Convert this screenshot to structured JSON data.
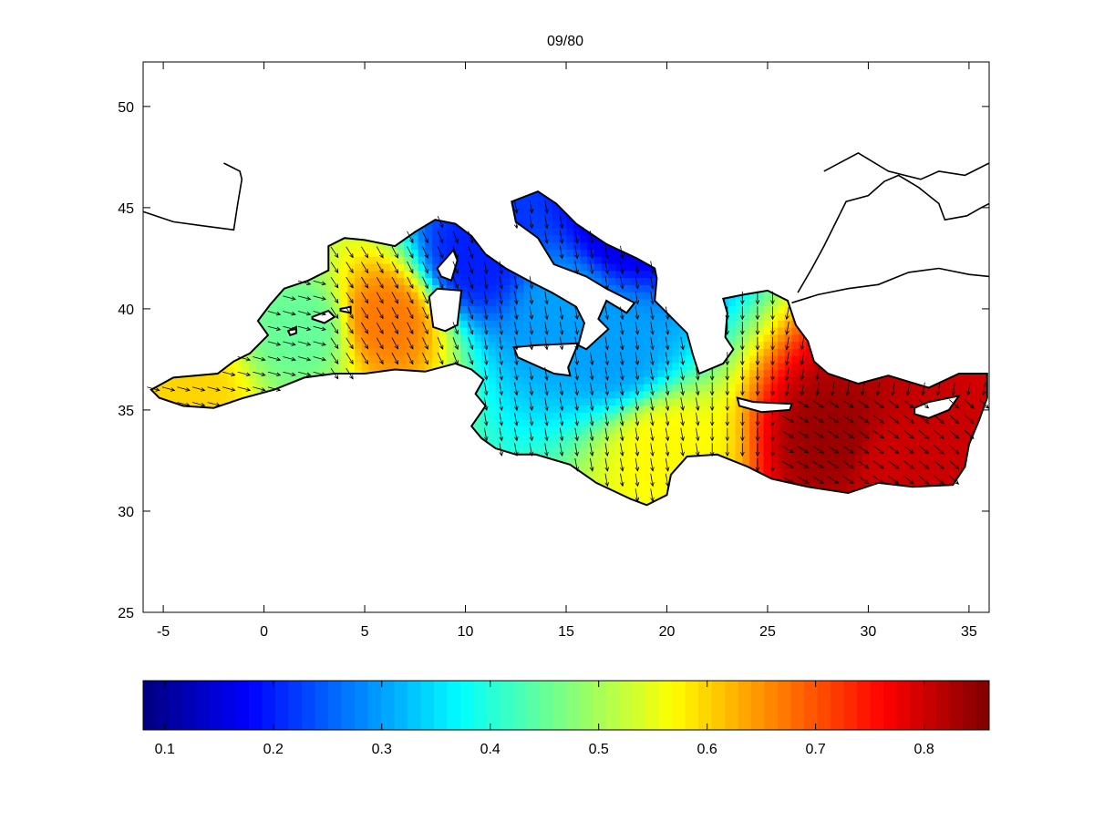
{
  "chart_data": {
    "type": "heatmap",
    "title": "09/80",
    "xlabel": "",
    "ylabel": "",
    "xlim": [
      -6,
      36
    ],
    "ylim": [
      25,
      52.2
    ],
    "x_ticks": [
      -5,
      0,
      5,
      10,
      15,
      20,
      25,
      30,
      35
    ],
    "y_ticks": [
      25,
      30,
      35,
      40,
      45,
      50
    ],
    "grid": false,
    "colormap": "jet",
    "colorbar": {
      "orientation": "horizontal",
      "placement": "bottom",
      "range": [
        0.08,
        0.86
      ],
      "ticks": [
        0.1,
        0.2,
        0.3,
        0.4,
        0.5,
        0.6,
        0.7,
        0.8
      ]
    },
    "field_peaks": [
      {
        "lon": 6.0,
        "lat": 39.5,
        "value": 0.67
      },
      {
        "lon": 28.5,
        "lat": 33.5,
        "value": 0.84
      },
      {
        "lon": 31.0,
        "lat": 32.5,
        "value": 0.8
      },
      {
        "lon": 18.0,
        "lat": 44.0,
        "value": 0.16
      },
      {
        "lon": 10.5,
        "lat": 42.5,
        "value": 0.2
      },
      {
        "lon": 17.5,
        "lat": 38.0,
        "value": 0.3
      },
      {
        "lon": 15.0,
        "lat": 40.0,
        "value": 0.3
      },
      {
        "lon": -4.0,
        "lat": 35.8,
        "value": 0.6
      },
      {
        "lon": 20.0,
        "lat": 33.0,
        "value": 0.57
      },
      {
        "lon": 2.0,
        "lat": 39.0,
        "value": 0.45
      }
    ],
    "vector_field": {
      "description_units": "wind direction arrows",
      "dominant_direction": "north-to-south (NW winds in west, N winds in centre and east)"
    },
    "colors": {
      "coastline": "#000000",
      "arrow": "#000000",
      "axes": "#000000"
    }
  }
}
